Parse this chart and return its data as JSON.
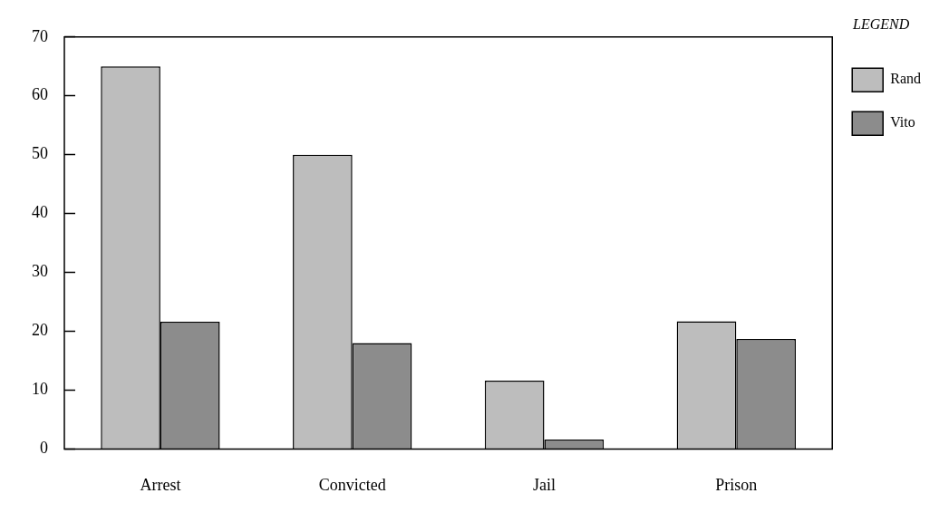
{
  "chart_data": {
    "type": "bar",
    "categories": [
      "Arrest",
      "Convicted",
      "Jail",
      "Prison"
    ],
    "series": [
      {
        "name": "Rand",
        "color": "#bdbdbd",
        "values": [
          65,
          50,
          11.6,
          21.7
        ]
      },
      {
        "name": "Vito",
        "color": "#8c8c8c",
        "values": [
          21.6,
          18,
          1.6,
          18.7
        ]
      }
    ],
    "ylim": [
      0,
      70
    ],
    "yticks": [
      0,
      10,
      20,
      30,
      40,
      50,
      60,
      70
    ],
    "grid": false,
    "legend": "top right",
    "legend_title": "LEGEND"
  }
}
